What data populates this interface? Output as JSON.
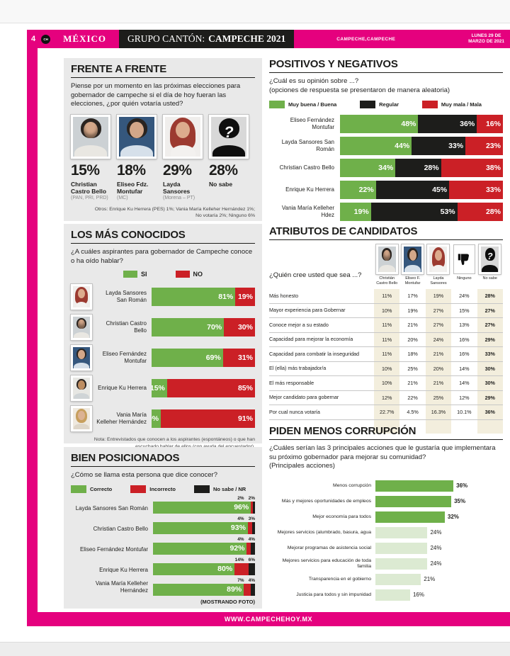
{
  "colors": {
    "pink": "#e5017e",
    "green": "#6fb04a",
    "lgreen": "#dcead2",
    "red": "#cb2026",
    "black": "#1d1d1b",
    "beige": "#f3eedd",
    "panel": "#e9e9e9"
  },
  "header": {
    "page_number": "4",
    "logo": "CH",
    "section": "MÉXICO",
    "masthead_prefix": "GRUPO CANTÓN:",
    "masthead_bold": "CAMPECHE 2021",
    "location": "CAMPECHE,CAMPECHE",
    "date_line1": "LUNES 29 DE",
    "date_line2": "MARZO DE 2021"
  },
  "footer": {
    "url": "WWW.CAMPECHEHOY.MX"
  },
  "chart_data": [
    {
      "id": "frente_a_frente",
      "type": "bar",
      "title": "FRENTE A FRENTE",
      "question": "Piense por un momento en las próximas elecciones para gobernador de campeche si el día de hoy fueran las elecciones, ¿por quién votaría usted?",
      "candidates": [
        {
          "pct": "15%",
          "name": "Christian Castro Bello",
          "party": "(PAN, PRI, PRD)",
          "avatar": "castro"
        },
        {
          "pct": "18%",
          "name": "Eliseo Fdz. Montufar",
          "party": "(MC)",
          "avatar": "eliseo"
        },
        {
          "pct": "29%",
          "name": "Layda Sansores",
          "party": "(Morena – PT)",
          "avatar": "layda"
        },
        {
          "pct": "28%",
          "name": "No sabe",
          "party": "",
          "avatar": "nosabe"
        }
      ],
      "footnote_line1": "Otros: Enrique Ku Herrera (PES) 1%; Vania María Kelleher Hernández 1%;",
      "footnote_line2": "No votaría 2%; Ninguno 6%"
    },
    {
      "id": "positivos_y_negativos",
      "type": "stacked-bar",
      "title": "POSITIVOS Y NEGATIVOS",
      "question": "¿Cuál es su opinión sobre ...?",
      "note": "(opciones de respuesta se presentaron de manera aleatoria)",
      "legend": [
        "Muy buena / Buena",
        "Regular",
        "Muy mala / Mala"
      ],
      "rows": [
        {
          "name": "Eliseo Fernández Montufar",
          "good": "48%",
          "regular": "36%",
          "bad": "16%"
        },
        {
          "name": "Layda Sansores San Román",
          "good": "44%",
          "regular": "33%",
          "bad": "23%"
        },
        {
          "name": "Christian Castro Bello",
          "good": "34%",
          "regular": "28%",
          "bad": "38%"
        },
        {
          "name": "Enrique Ku Herrera",
          "good": "22%",
          "regular": "45%",
          "bad": "33%"
        },
        {
          "name": "Vania María Kelleher Hdez",
          "good": "19%",
          "regular": "53%",
          "bad": "28%"
        }
      ]
    },
    {
      "id": "los_mas_conocidos",
      "type": "stacked-bar",
      "title": "LOS MÁS CONOCIDOS",
      "question": "¿A cuáles aspirantes para gobernador de Campeche conoce o ha oído hablar?",
      "legend": [
        "SI",
        "NO"
      ],
      "rows": [
        {
          "name": "Layda Sansores San Román",
          "si": "81%",
          "no": "19%",
          "avatar": "layda"
        },
        {
          "name": "Christian Castro Bello",
          "si": "70%",
          "no": "30%",
          "avatar": "castro"
        },
        {
          "name": "Eliseo Fernández Montufar",
          "si": "69%",
          "no": "31%",
          "avatar": "eliseo"
        },
        {
          "name": "Enrique Ku Herrera",
          "si": "15%",
          "no": "85%",
          "avatar": "ku"
        },
        {
          "name": "Vania María Kelleher Hernández",
          "si": "9%",
          "no": "91%",
          "avatar": "vania"
        }
      ],
      "note": "Nota: Entrevistados que conocen a los aspirantes (espontáneos) o que han escuchado hablar de ellos (con ayuda del encuestador)."
    },
    {
      "id": "atributos_de_candidatos",
      "type": "table",
      "title": "ATRIBUTOS DE CANDIDATOS",
      "question": "¿Quién cree usted que sea ...?",
      "columns": [
        "Christián Castro Bello",
        "Eliseo F. Montufar",
        "Layda Sansores",
        "Ninguno",
        "No sabe"
      ],
      "header_icons": [
        "castro",
        "eliseo",
        "layda",
        "ninguno",
        "nosabe"
      ],
      "rows": [
        {
          "label": "Más honesto",
          "values": [
            "11%",
            "17%",
            "19%",
            "24%",
            "28%"
          ]
        },
        {
          "label": "Mayor experiencia para Gobernar",
          "values": [
            "10%",
            "19%",
            "27%",
            "15%",
            "27%"
          ]
        },
        {
          "label": "Conoce mejor a su estado",
          "values": [
            "11%",
            "21%",
            "27%",
            "13%",
            "27%"
          ]
        },
        {
          "label": "Capacidad para mejorar la economía",
          "values": [
            "11%",
            "20%",
            "24%",
            "16%",
            "29%"
          ]
        },
        {
          "label": "Capacidad para combatir la inseguridad",
          "values": [
            "11%",
            "18%",
            "21%",
            "16%",
            "33%"
          ]
        },
        {
          "label": "El (ella) más trabajador/a",
          "values": [
            "10%",
            "25%",
            "20%",
            "14%",
            "30%"
          ]
        },
        {
          "label": "El más responsable",
          "values": [
            "10%",
            "21%",
            "21%",
            "14%",
            "30%"
          ]
        },
        {
          "label": "Mejor candidato para gobernar",
          "values": [
            "12%",
            "22%",
            "25%",
            "12%",
            "29%"
          ]
        },
        {
          "label": "Por cual nunca votaría",
          "values": [
            "22.7%",
            "4.5%",
            "16.3%",
            "10.1%",
            "36%"
          ]
        }
      ]
    },
    {
      "id": "bien_posicionados",
      "type": "stacked-bar",
      "title": "BIEN POSICIONADOS",
      "question": "¿Cómo se llama esta persona que dice conocer?",
      "legend": [
        "Correcto",
        "Incorrecto",
        "No sabe / NR"
      ],
      "rows": [
        {
          "name": "Layda Sansores San Román",
          "correct": "96%",
          "incorrect": "2%",
          "ns": "2%"
        },
        {
          "name": "Christian Castro Bello",
          "correct": "93%",
          "incorrect": "4%",
          "ns": "3%"
        },
        {
          "name": "Eliseo Fernández Montufar",
          "correct": "92%",
          "incorrect": "4%",
          "ns": "4%"
        },
        {
          "name": "Enrique Ku Herrera",
          "correct": "80%",
          "incorrect": "14%",
          "ns": "6%"
        },
        {
          "name": "Vania María Kelleher Hernández",
          "correct": "89%",
          "incorrect": "7%",
          "ns": "4%"
        }
      ],
      "footer": "(MOSTRANDO FOTO)"
    },
    {
      "id": "piden_menos_corrupcion",
      "type": "bar",
      "title": "PIDEN MENOS CORRUPCIÓN",
      "question": "¿Cuáles serían las 3 principales acciones que le gustaría que implementara su próximo gobernador para mejorar su comunidad?",
      "note": "(Principales acciones)",
      "rows": [
        {
          "label": "Menos corrupción",
          "value": "36%"
        },
        {
          "label": "Más y mejores oportunidades de empleos",
          "value": "35%"
        },
        {
          "label": "Mejor economía para todos",
          "value": "32%"
        },
        {
          "label": "Mejores servicios (alumbrado, basura, agua",
          "value": "24%"
        },
        {
          "label": "Mejorar programas de asistencia social",
          "value": "24%"
        },
        {
          "label": "Mejores servicios para educación de toda familia",
          "value": "24%"
        },
        {
          "label": "Transparencia en el gobierno",
          "value": "21%"
        },
        {
          "label": "Justicia para todos y sin impunidad",
          "value": "16%"
        }
      ]
    }
  ]
}
